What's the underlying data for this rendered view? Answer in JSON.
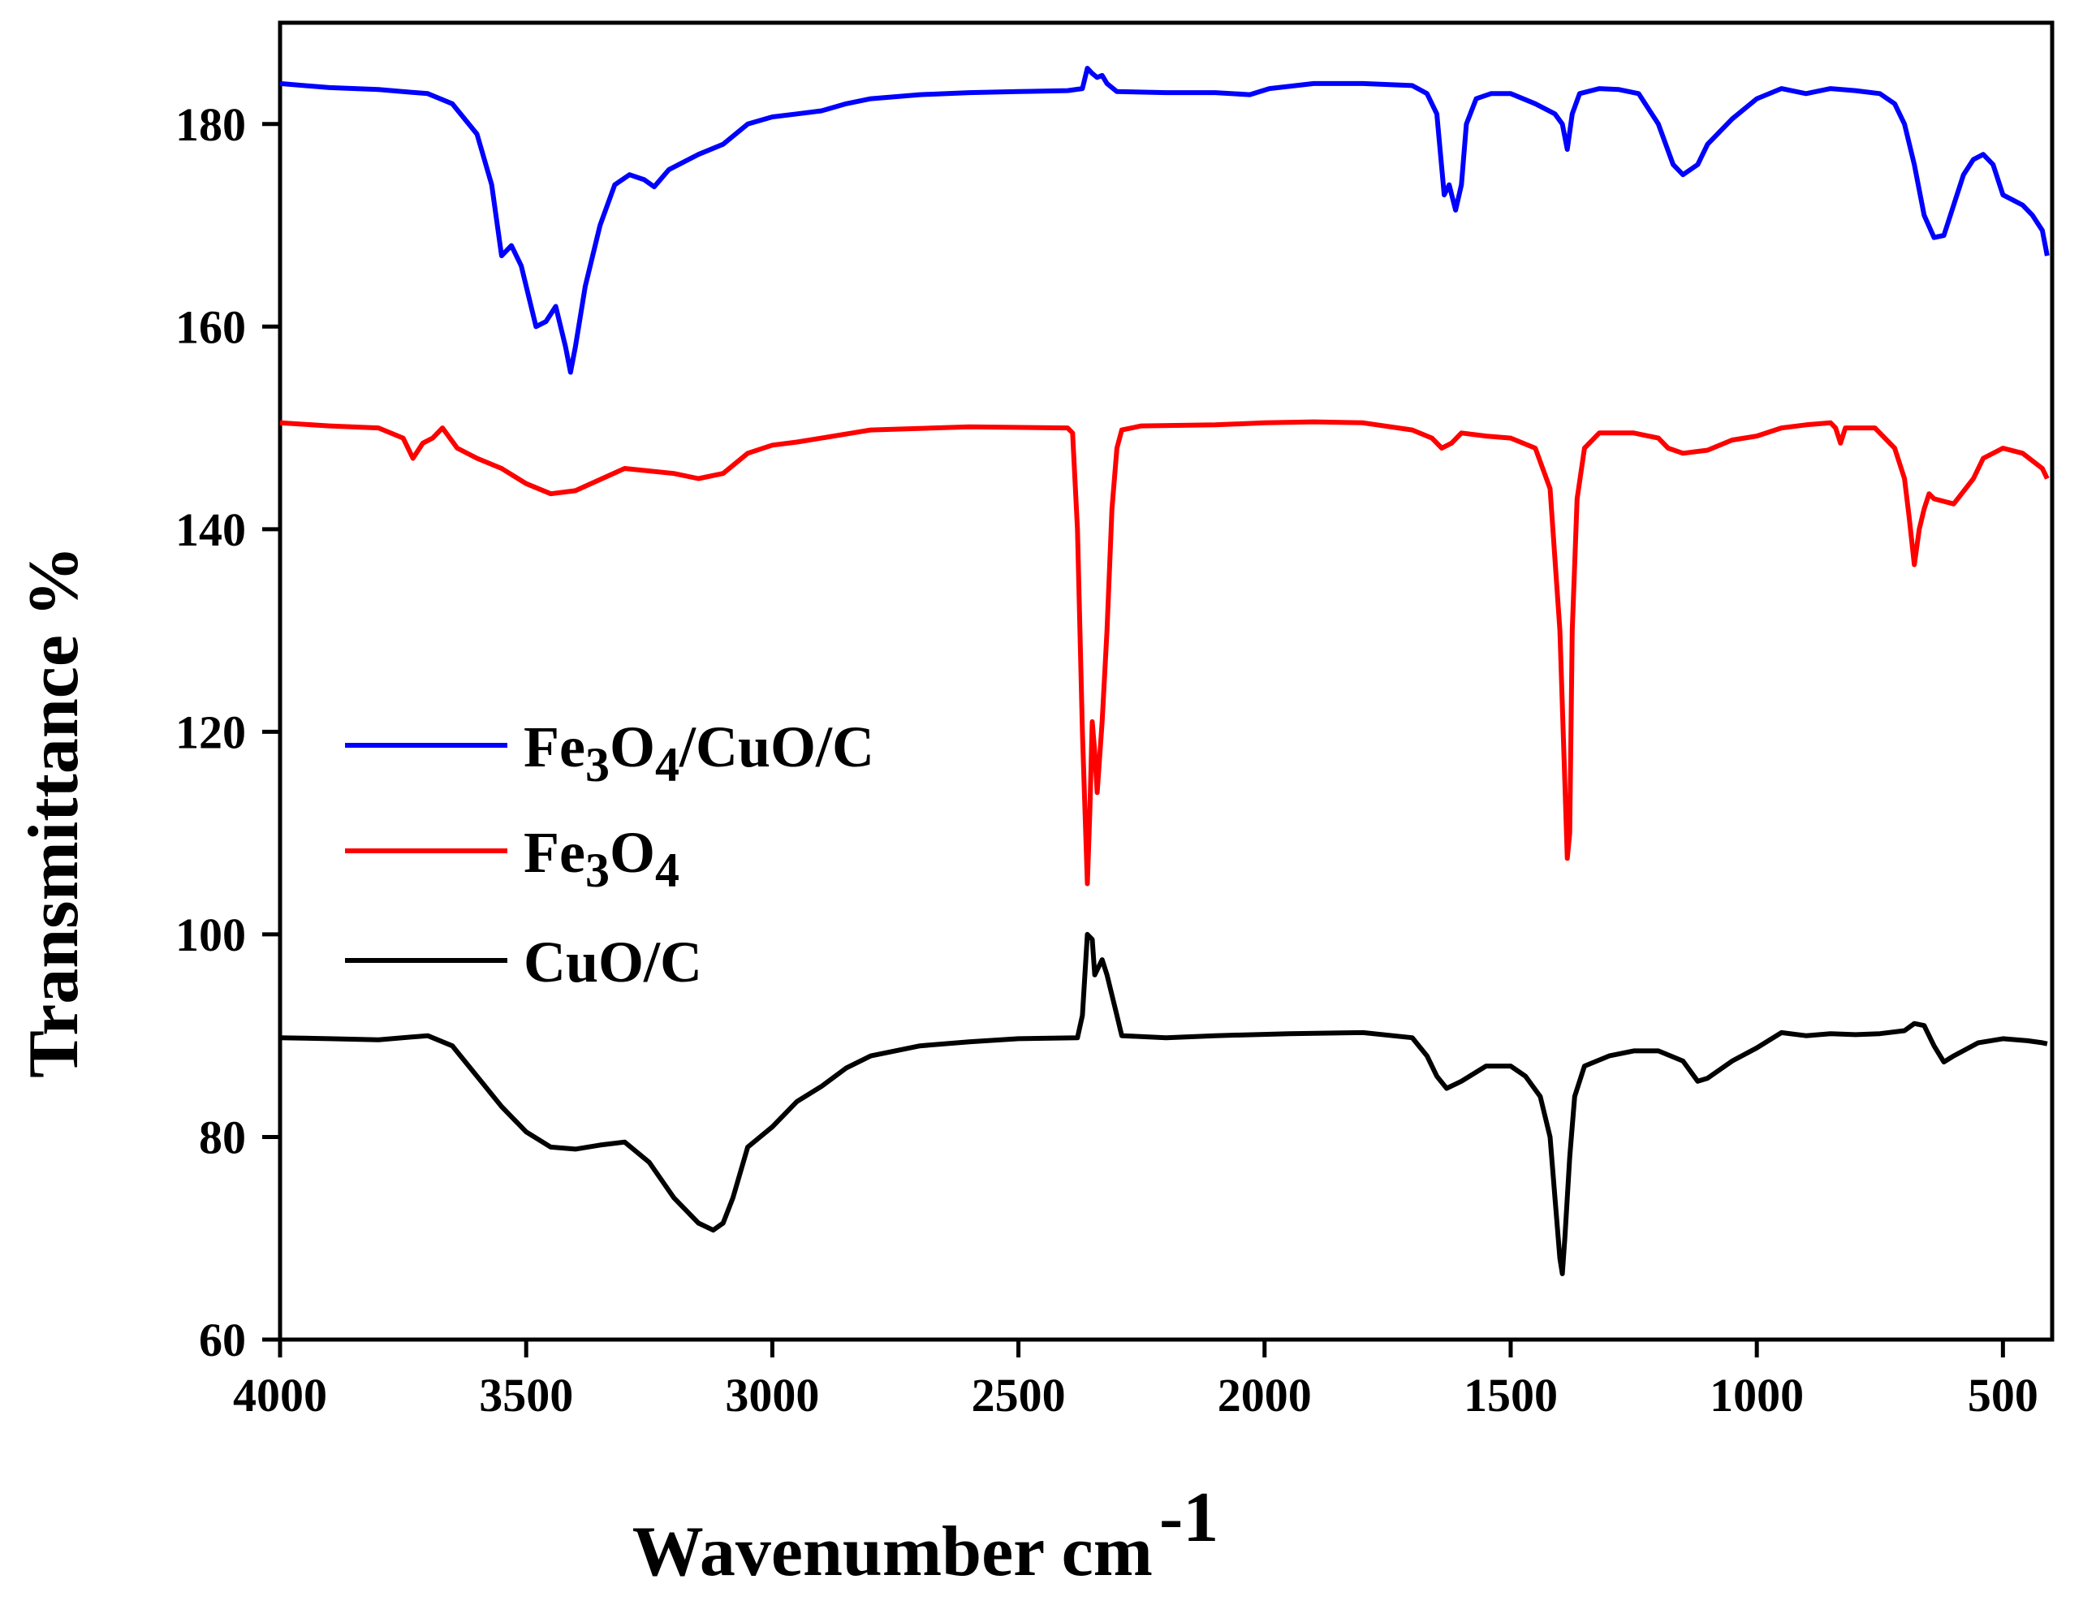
{
  "chart_data": {
    "type": "line",
    "title": "",
    "xlabel": "Wavenumber cm",
    "xlabel_superscript": "-1",
    "ylabel": "Transmittance %",
    "xlim": [
      4000,
      400
    ],
    "ylim": [
      60,
      190
    ],
    "x_ticks": [
      4000,
      3500,
      3000,
      2500,
      2000,
      1500,
      1000,
      500
    ],
    "y_ticks": [
      60,
      80,
      100,
      120,
      140,
      160,
      180
    ],
    "grid": false,
    "legend_position": "center-left",
    "series": [
      {
        "name": "Fe3O4/CuO/C",
        "legend_parts": [
          {
            "t": "Fe",
            "sub": false
          },
          {
            "t": "3",
            "sub": true
          },
          {
            "t": "O",
            "sub": false
          },
          {
            "t": "4",
            "sub": true
          },
          {
            "t": "/CuO/C",
            "sub": false
          }
        ],
        "color": "#0000ff",
        "points": [
          [
            4000,
            184
          ],
          [
            3900,
            183.6
          ],
          [
            3800,
            183.4
          ],
          [
            3700,
            183
          ],
          [
            3650,
            182
          ],
          [
            3600,
            179
          ],
          [
            3570,
            174
          ],
          [
            3550,
            167
          ],
          [
            3530,
            168
          ],
          [
            3510,
            166
          ],
          [
            3480,
            160
          ],
          [
            3460,
            160.5
          ],
          [
            3440,
            162
          ],
          [
            3420,
            158
          ],
          [
            3410,
            155.5
          ],
          [
            3400,
            158
          ],
          [
            3380,
            164
          ],
          [
            3350,
            170
          ],
          [
            3320,
            174
          ],
          [
            3290,
            175
          ],
          [
            3260,
            174.5
          ],
          [
            3240,
            173.8
          ],
          [
            3210,
            175.5
          ],
          [
            3150,
            177
          ],
          [
            3100,
            178
          ],
          [
            3050,
            180
          ],
          [
            3000,
            180.7
          ],
          [
            2950,
            181
          ],
          [
            2900,
            181.3
          ],
          [
            2850,
            182
          ],
          [
            2800,
            182.5
          ],
          [
            2700,
            182.9
          ],
          [
            2600,
            183.1
          ],
          [
            2500,
            183.2
          ],
          [
            2400,
            183.3
          ],
          [
            2370,
            183.5
          ],
          [
            2360,
            185.5
          ],
          [
            2350,
            185
          ],
          [
            2340,
            184.6
          ],
          [
            2330,
            184.8
          ],
          [
            2320,
            184
          ],
          [
            2300,
            183.2
          ],
          [
            2200,
            183.1
          ],
          [
            2100,
            183.1
          ],
          [
            2030,
            182.9
          ],
          [
            1990,
            183.5
          ],
          [
            1900,
            184
          ],
          [
            1800,
            184
          ],
          [
            1700,
            183.8
          ],
          [
            1670,
            183
          ],
          [
            1650,
            181
          ],
          [
            1635,
            173
          ],
          [
            1625,
            174
          ],
          [
            1612,
            171.5
          ],
          [
            1600,
            174
          ],
          [
            1590,
            180
          ],
          [
            1570,
            182.5
          ],
          [
            1540,
            183
          ],
          [
            1500,
            183
          ],
          [
            1450,
            182
          ],
          [
            1410,
            181
          ],
          [
            1395,
            180
          ],
          [
            1385,
            177.5
          ],
          [
            1375,
            181
          ],
          [
            1360,
            183
          ],
          [
            1320,
            183.5
          ],
          [
            1280,
            183.4
          ],
          [
            1240,
            183
          ],
          [
            1200,
            180
          ],
          [
            1170,
            176
          ],
          [
            1150,
            175
          ],
          [
            1120,
            176
          ],
          [
            1100,
            178
          ],
          [
            1050,
            180.5
          ],
          [
            1000,
            182.5
          ],
          [
            950,
            183.5
          ],
          [
            900,
            183
          ],
          [
            850,
            183.5
          ],
          [
            800,
            183.3
          ],
          [
            750,
            183
          ],
          [
            720,
            182
          ],
          [
            700,
            180
          ],
          [
            680,
            176
          ],
          [
            660,
            171
          ],
          [
            640,
            168.8
          ],
          [
            620,
            169
          ],
          [
            600,
            172
          ],
          [
            580,
            175
          ],
          [
            560,
            176.5
          ],
          [
            540,
            177
          ],
          [
            520,
            176
          ],
          [
            500,
            173
          ],
          [
            480,
            172.5
          ],
          [
            460,
            172
          ],
          [
            440,
            171
          ],
          [
            420,
            169.5
          ],
          [
            410,
            167
          ]
        ]
      },
      {
        "name": "Fe3O4",
        "legend_parts": [
          {
            "t": "Fe",
            "sub": false
          },
          {
            "t": "3",
            "sub": true
          },
          {
            "t": "O",
            "sub": false
          },
          {
            "t": "4",
            "sub": true
          }
        ],
        "color": "#ff0000",
        "points": [
          [
            4000,
            150.5
          ],
          [
            3900,
            150.2
          ],
          [
            3800,
            150
          ],
          [
            3750,
            149
          ],
          [
            3730,
            147
          ],
          [
            3710,
            148.5
          ],
          [
            3690,
            149
          ],
          [
            3670,
            150
          ],
          [
            3640,
            148
          ],
          [
            3600,
            147
          ],
          [
            3550,
            146
          ],
          [
            3500,
            144.5
          ],
          [
            3450,
            143.5
          ],
          [
            3400,
            143.8
          ],
          [
            3300,
            146
          ],
          [
            3200,
            145.5
          ],
          [
            3150,
            145
          ],
          [
            3100,
            145.5
          ],
          [
            3050,
            147.5
          ],
          [
            3000,
            148.3
          ],
          [
            2950,
            148.6
          ],
          [
            2900,
            149
          ],
          [
            2800,
            149.8
          ],
          [
            2600,
            150.1
          ],
          [
            2400,
            150
          ],
          [
            2390,
            149.5
          ],
          [
            2380,
            140
          ],
          [
            2370,
            120
          ],
          [
            2360,
            105
          ],
          [
            2355,
            112
          ],
          [
            2350,
            121
          ],
          [
            2345,
            118
          ],
          [
            2340,
            114
          ],
          [
            2330,
            121
          ],
          [
            2320,
            130
          ],
          [
            2310,
            142
          ],
          [
            2300,
            148
          ],
          [
            2290,
            149.8
          ],
          [
            2250,
            150.2
          ],
          [
            2100,
            150.3
          ],
          [
            2000,
            150.5
          ],
          [
            1900,
            150.6
          ],
          [
            1800,
            150.5
          ],
          [
            1700,
            149.8
          ],
          [
            1660,
            149
          ],
          [
            1640,
            148
          ],
          [
            1620,
            148.5
          ],
          [
            1600,
            149.5
          ],
          [
            1550,
            149.2
          ],
          [
            1500,
            149
          ],
          [
            1450,
            148
          ],
          [
            1420,
            144
          ],
          [
            1400,
            130
          ],
          [
            1390,
            115
          ],
          [
            1385,
            107.5
          ],
          [
            1380,
            110
          ],
          [
            1375,
            130
          ],
          [
            1365,
            143
          ],
          [
            1350,
            148
          ],
          [
            1320,
            149.5
          ],
          [
            1250,
            149.5
          ],
          [
            1200,
            149
          ],
          [
            1180,
            148
          ],
          [
            1150,
            147.5
          ],
          [
            1100,
            147.8
          ],
          [
            1050,
            148.8
          ],
          [
            1000,
            149.2
          ],
          [
            950,
            150
          ],
          [
            900,
            150.3
          ],
          [
            850,
            150.5
          ],
          [
            840,
            150
          ],
          [
            830,
            148.5
          ],
          [
            820,
            150
          ],
          [
            800,
            150
          ],
          [
            760,
            150
          ],
          [
            720,
            148
          ],
          [
            700,
            145
          ],
          [
            690,
            141
          ],
          [
            680,
            136.5
          ],
          [
            670,
            140
          ],
          [
            660,
            142
          ],
          [
            650,
            143.5
          ],
          [
            640,
            143
          ],
          [
            600,
            142.5
          ],
          [
            560,
            145
          ],
          [
            540,
            147
          ],
          [
            500,
            148
          ],
          [
            460,
            147.5
          ],
          [
            420,
            146
          ],
          [
            410,
            145
          ]
        ]
      },
      {
        "name": "CuO/C",
        "legend_parts": [
          {
            "t": "CuO/C",
            "sub": false
          }
        ],
        "color": "#000000",
        "points": [
          [
            4000,
            89.8
          ],
          [
            3900,
            89.7
          ],
          [
            3800,
            89.6
          ],
          [
            3700,
            90
          ],
          [
            3650,
            89
          ],
          [
            3600,
            86
          ],
          [
            3550,
            83
          ],
          [
            3500,
            80.5
          ],
          [
            3450,
            79
          ],
          [
            3400,
            78.8
          ],
          [
            3350,
            79.2
          ],
          [
            3300,
            79.5
          ],
          [
            3250,
            77.5
          ],
          [
            3200,
            74
          ],
          [
            3150,
            71.5
          ],
          [
            3120,
            70.8
          ],
          [
            3100,
            71.5
          ],
          [
            3080,
            74
          ],
          [
            3050,
            79
          ],
          [
            3000,
            81
          ],
          [
            2950,
            83.5
          ],
          [
            2900,
            85
          ],
          [
            2850,
            86.8
          ],
          [
            2800,
            88
          ],
          [
            2700,
            89
          ],
          [
            2600,
            89.4
          ],
          [
            2500,
            89.7
          ],
          [
            2380,
            89.8
          ],
          [
            2370,
            92
          ],
          [
            2360,
            100
          ],
          [
            2350,
            99.5
          ],
          [
            2345,
            96
          ],
          [
            2340,
            96.5
          ],
          [
            2330,
            97.5
          ],
          [
            2320,
            96
          ],
          [
            2300,
            92
          ],
          [
            2290,
            90
          ],
          [
            2200,
            89.8
          ],
          [
            2100,
            90
          ],
          [
            1950,
            90.2
          ],
          [
            1800,
            90.3
          ],
          [
            1700,
            89.8
          ],
          [
            1670,
            88
          ],
          [
            1650,
            86
          ],
          [
            1630,
            84.8
          ],
          [
            1600,
            85.5
          ],
          [
            1550,
            87
          ],
          [
            1500,
            87
          ],
          [
            1470,
            86
          ],
          [
            1440,
            84
          ],
          [
            1420,
            80
          ],
          [
            1410,
            74
          ],
          [
            1400,
            68
          ],
          [
            1395,
            66.5
          ],
          [
            1390,
            70
          ],
          [
            1380,
            78
          ],
          [
            1370,
            84
          ],
          [
            1350,
            87
          ],
          [
            1300,
            88
          ],
          [
            1250,
            88.5
          ],
          [
            1200,
            88.5
          ],
          [
            1150,
            87.5
          ],
          [
            1120,
            85.5
          ],
          [
            1100,
            85.8
          ],
          [
            1050,
            87.5
          ],
          [
            1000,
            88.8
          ],
          [
            950,
            90.3
          ],
          [
            900,
            90
          ],
          [
            850,
            90.2
          ],
          [
            800,
            90.1
          ],
          [
            750,
            90.2
          ],
          [
            700,
            90.5
          ],
          [
            680,
            91.2
          ],
          [
            660,
            91
          ],
          [
            640,
            89
          ],
          [
            620,
            87.4
          ],
          [
            600,
            88
          ],
          [
            550,
            89.3
          ],
          [
            500,
            89.7
          ],
          [
            450,
            89.5
          ],
          [
            420,
            89.3
          ],
          [
            410,
            89.2
          ]
        ]
      }
    ]
  }
}
